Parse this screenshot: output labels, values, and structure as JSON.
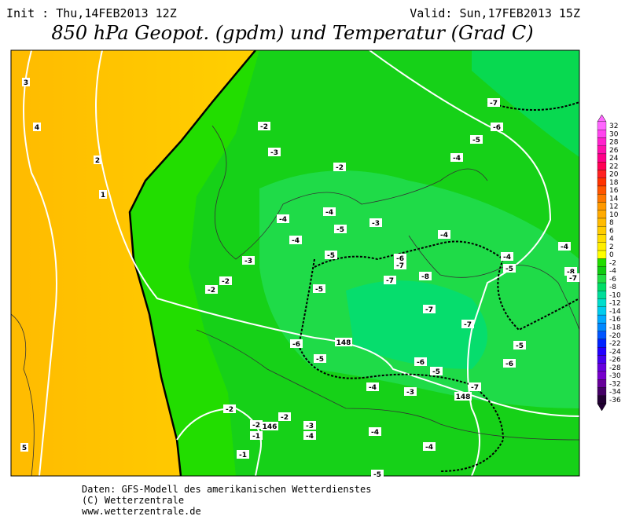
{
  "header": {
    "init": "Init : Thu,14FEB2013 12Z",
    "valid": "Valid: Sun,17FEB2013 15Z",
    "title": "850 hPa Geopot. (gpdm) und Temperatur (Grad C)"
  },
  "map": {
    "labels": [
      3,
      4,
      2,
      1,
      -2,
      -3,
      -2,
      -4,
      -4,
      -5,
      -3,
      -4,
      -3,
      -5,
      -2,
      -2,
      -5,
      -6,
      -7,
      -8,
      -7,
      -7,
      -7,
      -4,
      -4,
      -5,
      -4,
      -8,
      -7,
      -7,
      -6,
      -5,
      -4,
      -5,
      -6,
      -6,
      148,
      -5,
      -6,
      -5,
      -4,
      -3,
      -7,
      148,
      -2,
      -2,
      -2,
      146,
      -1,
      -3,
      -4,
      -4,
      -4,
      -1,
      5,
      -5
    ]
  },
  "legend": {
    "values": [
      32,
      30,
      28,
      26,
      24,
      22,
      20,
      18,
      16,
      14,
      12,
      10,
      8,
      6,
      4,
      2,
      0,
      -2,
      -4,
      -6,
      -8,
      -10,
      -12,
      -14,
      -16,
      -18,
      -20,
      -22,
      -24,
      -26,
      -28,
      -30,
      -32,
      -34,
      -36
    ],
    "colors": [
      "#ff66ff",
      "#ff44ee",
      "#ff22cc",
      "#ff11aa",
      "#ff0088",
      "#ff0055",
      "#ff2222",
      "#ff3300",
      "#ff5500",
      "#ff7700",
      "#ff9900",
      "#ffaa00",
      "#ffbb00",
      "#ffcc00",
      "#ffdd00",
      "#ffee00",
      "#ffff00",
      "#22dd00",
      "#11cc11",
      "#22dd44",
      "#00dd66",
      "#00dd99",
      "#00ddcc",
      "#00ccee",
      "#00aaff",
      "#0088ff",
      "#0055ff",
      "#0022ff",
      "#2200ff",
      "#4400ee",
      "#6600dd",
      "#7700cc",
      "#660099",
      "#440066",
      "#220033"
    ]
  },
  "footer": {
    "lines": [
      "Daten: GFS-Modell des amerikanischen Wetterdienstes",
      "(C) Wetterzentrale",
      "www.wetterzentrale.de"
    ]
  }
}
